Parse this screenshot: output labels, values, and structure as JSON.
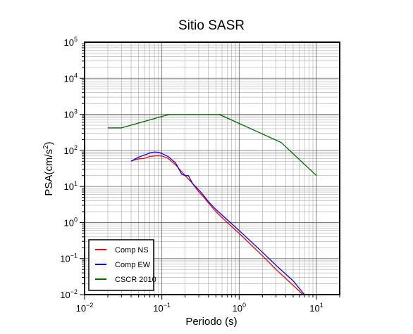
{
  "chart_data": {
    "type": "line",
    "title": "Sitio SASR",
    "xlabel": "Periodo (s)",
    "ylabel_main": "PSA(cm/s",
    "ylabel_sup": "2",
    "ylabel_close": ")",
    "x_scale": "log",
    "y_scale": "log",
    "xlim": [
      0.01,
      20
    ],
    "ylim": [
      0.01,
      100000
    ],
    "grid": true,
    "legend_position": "bottom-left",
    "x_ticks": [
      {
        "value": 0.01,
        "base": "10",
        "exp": "−2"
      },
      {
        "value": 0.1,
        "base": "10",
        "exp": "−1"
      },
      {
        "value": 1,
        "base": "10",
        "exp": "0"
      },
      {
        "value": 10,
        "base": "10",
        "exp": "1"
      }
    ],
    "y_ticks": [
      {
        "value": 0.01,
        "base": "10",
        "exp": "−2"
      },
      {
        "value": 0.1,
        "base": "10",
        "exp": "−1"
      },
      {
        "value": 1,
        "base": "10",
        "exp": "0"
      },
      {
        "value": 10,
        "base": "10",
        "exp": "1"
      },
      {
        "value": 100,
        "base": "10",
        "exp": "2"
      },
      {
        "value": 1000,
        "base": "10",
        "exp": "3"
      },
      {
        "value": 10000,
        "base": "10",
        "exp": "4"
      },
      {
        "value": 100000,
        "base": "10",
        "exp": "5"
      }
    ],
    "series": [
      {
        "name": "Comp NS",
        "color": "#ff0000",
        "points": [
          [
            0.04,
            50
          ],
          [
            0.045,
            55
          ],
          [
            0.05,
            58
          ],
          [
            0.06,
            60
          ],
          [
            0.07,
            68
          ],
          [
            0.08,
            70
          ],
          [
            0.09,
            71
          ],
          [
            0.1,
            70
          ],
          [
            0.12,
            60
          ],
          [
            0.15,
            40
          ],
          [
            0.2,
            20
          ],
          [
            0.25,
            12
          ],
          [
            0.3,
            7
          ],
          [
            0.35,
            5
          ],
          [
            0.4,
            3.5
          ],
          [
            0.5,
            2
          ],
          [
            0.7,
            1
          ],
          [
            1,
            0.5
          ],
          [
            2,
            0.12
          ],
          [
            3,
            0.05
          ],
          [
            5,
            0.018
          ],
          [
            8,
            0.007
          ]
        ]
      },
      {
        "name": "Comp EW",
        "color": "#0000ff",
        "points": [
          [
            0.04,
            50
          ],
          [
            0.05,
            65
          ],
          [
            0.06,
            75
          ],
          [
            0.07,
            85
          ],
          [
            0.08,
            90
          ],
          [
            0.09,
            88
          ],
          [
            0.1,
            82
          ],
          [
            0.12,
            68
          ],
          [
            0.15,
            45
          ],
          [
            0.18,
            22
          ],
          [
            0.2,
            20
          ],
          [
            0.22,
            20
          ],
          [
            0.25,
            12
          ],
          [
            0.3,
            8
          ],
          [
            0.35,
            5.5
          ],
          [
            0.4,
            3.8
          ],
          [
            0.5,
            2.3
          ],
          [
            0.7,
            1.2
          ],
          [
            1,
            0.6
          ],
          [
            2,
            0.15
          ],
          [
            3,
            0.065
          ],
          [
            5,
            0.024
          ],
          [
            7,
            0.01
          ]
        ]
      },
      {
        "name": "CSCR 2010",
        "color": "#006400",
        "points": [
          [
            0.02,
            420
          ],
          [
            0.03,
            420
          ],
          [
            0.125,
            1000
          ],
          [
            0.55,
            1000
          ],
          [
            3.5,
            165
          ],
          [
            10,
            20
          ]
        ]
      }
    ]
  }
}
